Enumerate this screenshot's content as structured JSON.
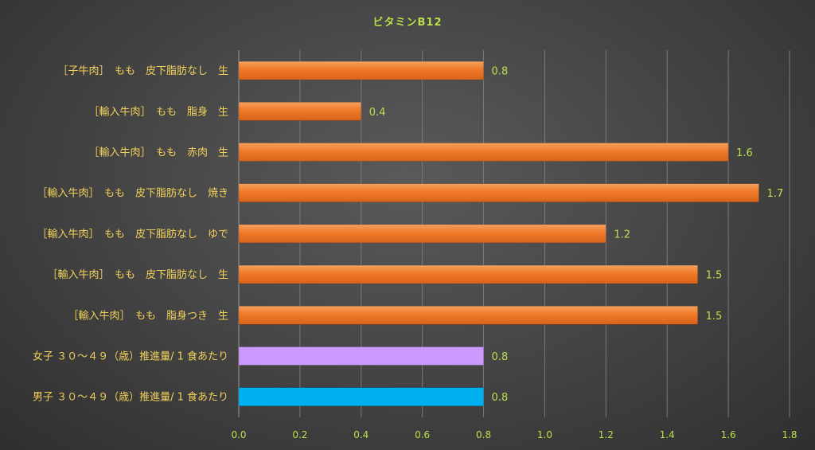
{
  "chart_data": {
    "type": "bar",
    "orientation": "horizontal",
    "title": "ビタミンB12",
    "categories": [
      "［子牛肉］　もも　皮下脂肪なし　生",
      "［輸入牛肉］　もも　脂身　生",
      "［輸入牛肉］　もも　赤肉　生",
      "［輸入牛肉］　もも　皮下脂肪なし　焼き",
      "［輸入牛肉］　もも　皮下脂肪なし　ゆで",
      "［輸入牛肉］　もも　皮下脂肪なし　生",
      "［輸入牛肉］　もも　脂身つき　生",
      "女子 ３０～４９（歳）推進量/ 1 食あたり",
      "男子 ３０～４９（歳）推進量/ 1 食あたり"
    ],
    "values": [
      0.8,
      0.4,
      1.6,
      1.7,
      1.2,
      1.5,
      1.5,
      0.8,
      0.8
    ],
    "value_labels": [
      "0.8",
      "0.4",
      "1.6",
      "1.7",
      "1.2",
      "1.5",
      "1.5",
      "0.8",
      "0.8"
    ],
    "bar_colors": [
      "#f07a28",
      "#f07a28",
      "#f07a28",
      "#f07a28",
      "#f07a28",
      "#f07a28",
      "#f07a28",
      "#cc99ff",
      "#00b0f0"
    ],
    "xlim": [
      0,
      1.8
    ],
    "xticks": [
      "0.0",
      "0.2",
      "0.4",
      "0.6",
      "0.8",
      "1.0",
      "1.2",
      "1.4",
      "1.6",
      "1.8"
    ],
    "xlabel": "",
    "ylabel": "",
    "grid": true
  }
}
